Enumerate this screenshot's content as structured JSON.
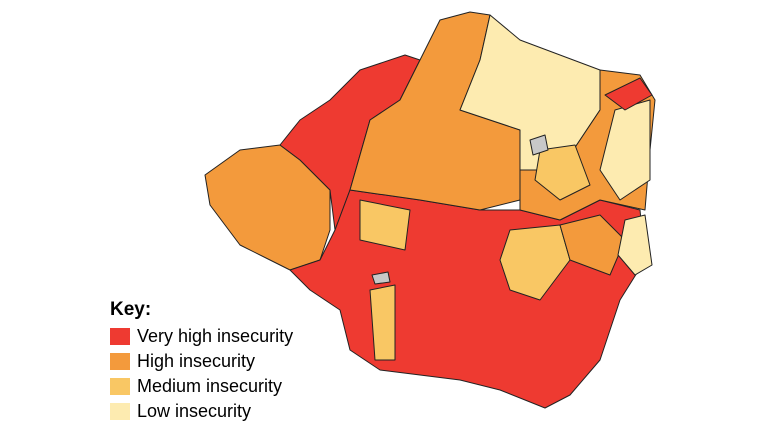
{
  "key": {
    "title": "Key:",
    "items": [
      {
        "label": "Very high insecurity",
        "color": "#ee3a31"
      },
      {
        "label": "High insecurity",
        "color": "#f39a3c"
      },
      {
        "label": "Medium insecurity",
        "color": "#f9c764"
      },
      {
        "label": "Low insecurity",
        "color": "#fdebb0"
      }
    ]
  }
}
